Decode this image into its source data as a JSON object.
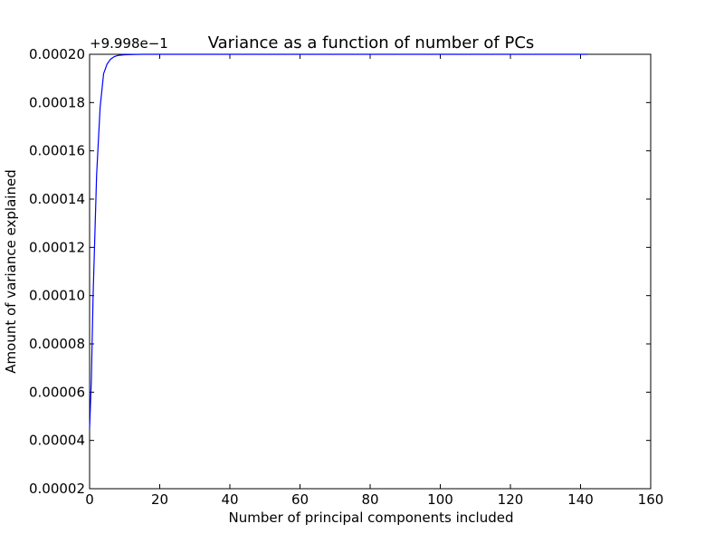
{
  "chart_data": {
    "type": "line",
    "title": "Variance as a function of number of PCs",
    "xlabel": "Number of principal components included",
    "ylabel": "Amount of variance explained",
    "y_offset_label": "+9.998e−1",
    "xlim": [
      0,
      160
    ],
    "ylim": [
      2e-05,
      0.0002
    ],
    "x_ticks": [
      0,
      20,
      40,
      60,
      80,
      100,
      120,
      140,
      160
    ],
    "x_tick_labels": [
      "0",
      "20",
      "40",
      "60",
      "80",
      "100",
      "120",
      "140",
      "160"
    ],
    "y_ticks": [
      2e-05,
      4e-05,
      6e-05,
      8e-05,
      0.0001,
      0.00012,
      0.00014,
      0.00016,
      0.00018,
      0.0002
    ],
    "y_tick_labels": [
      "0.00002",
      "0.00004",
      "0.00006",
      "0.00008",
      "0.00010",
      "0.00012",
      "0.00014",
      "0.00016",
      "0.00018",
      "0.00020"
    ],
    "grid": false,
    "series": [
      {
        "color": "#0000ff",
        "x": [
          0,
          0.5,
          1,
          2,
          3,
          4,
          5,
          6,
          7,
          8,
          10,
          12,
          15,
          20,
          30,
          40,
          60,
          80,
          100,
          120,
          142
        ],
        "y": [
          4.5e-05,
          6.5e-05,
          0.0001,
          0.00015,
          0.000178,
          0.000192,
          0.000196,
          0.000198,
          0.000199,
          0.0001995,
          0.0001998,
          0.0001999,
          0.0002,
          0.0002,
          0.0002,
          0.0002,
          0.0002,
          0.0002,
          0.0002,
          0.0002,
          0.0002
        ]
      }
    ]
  }
}
